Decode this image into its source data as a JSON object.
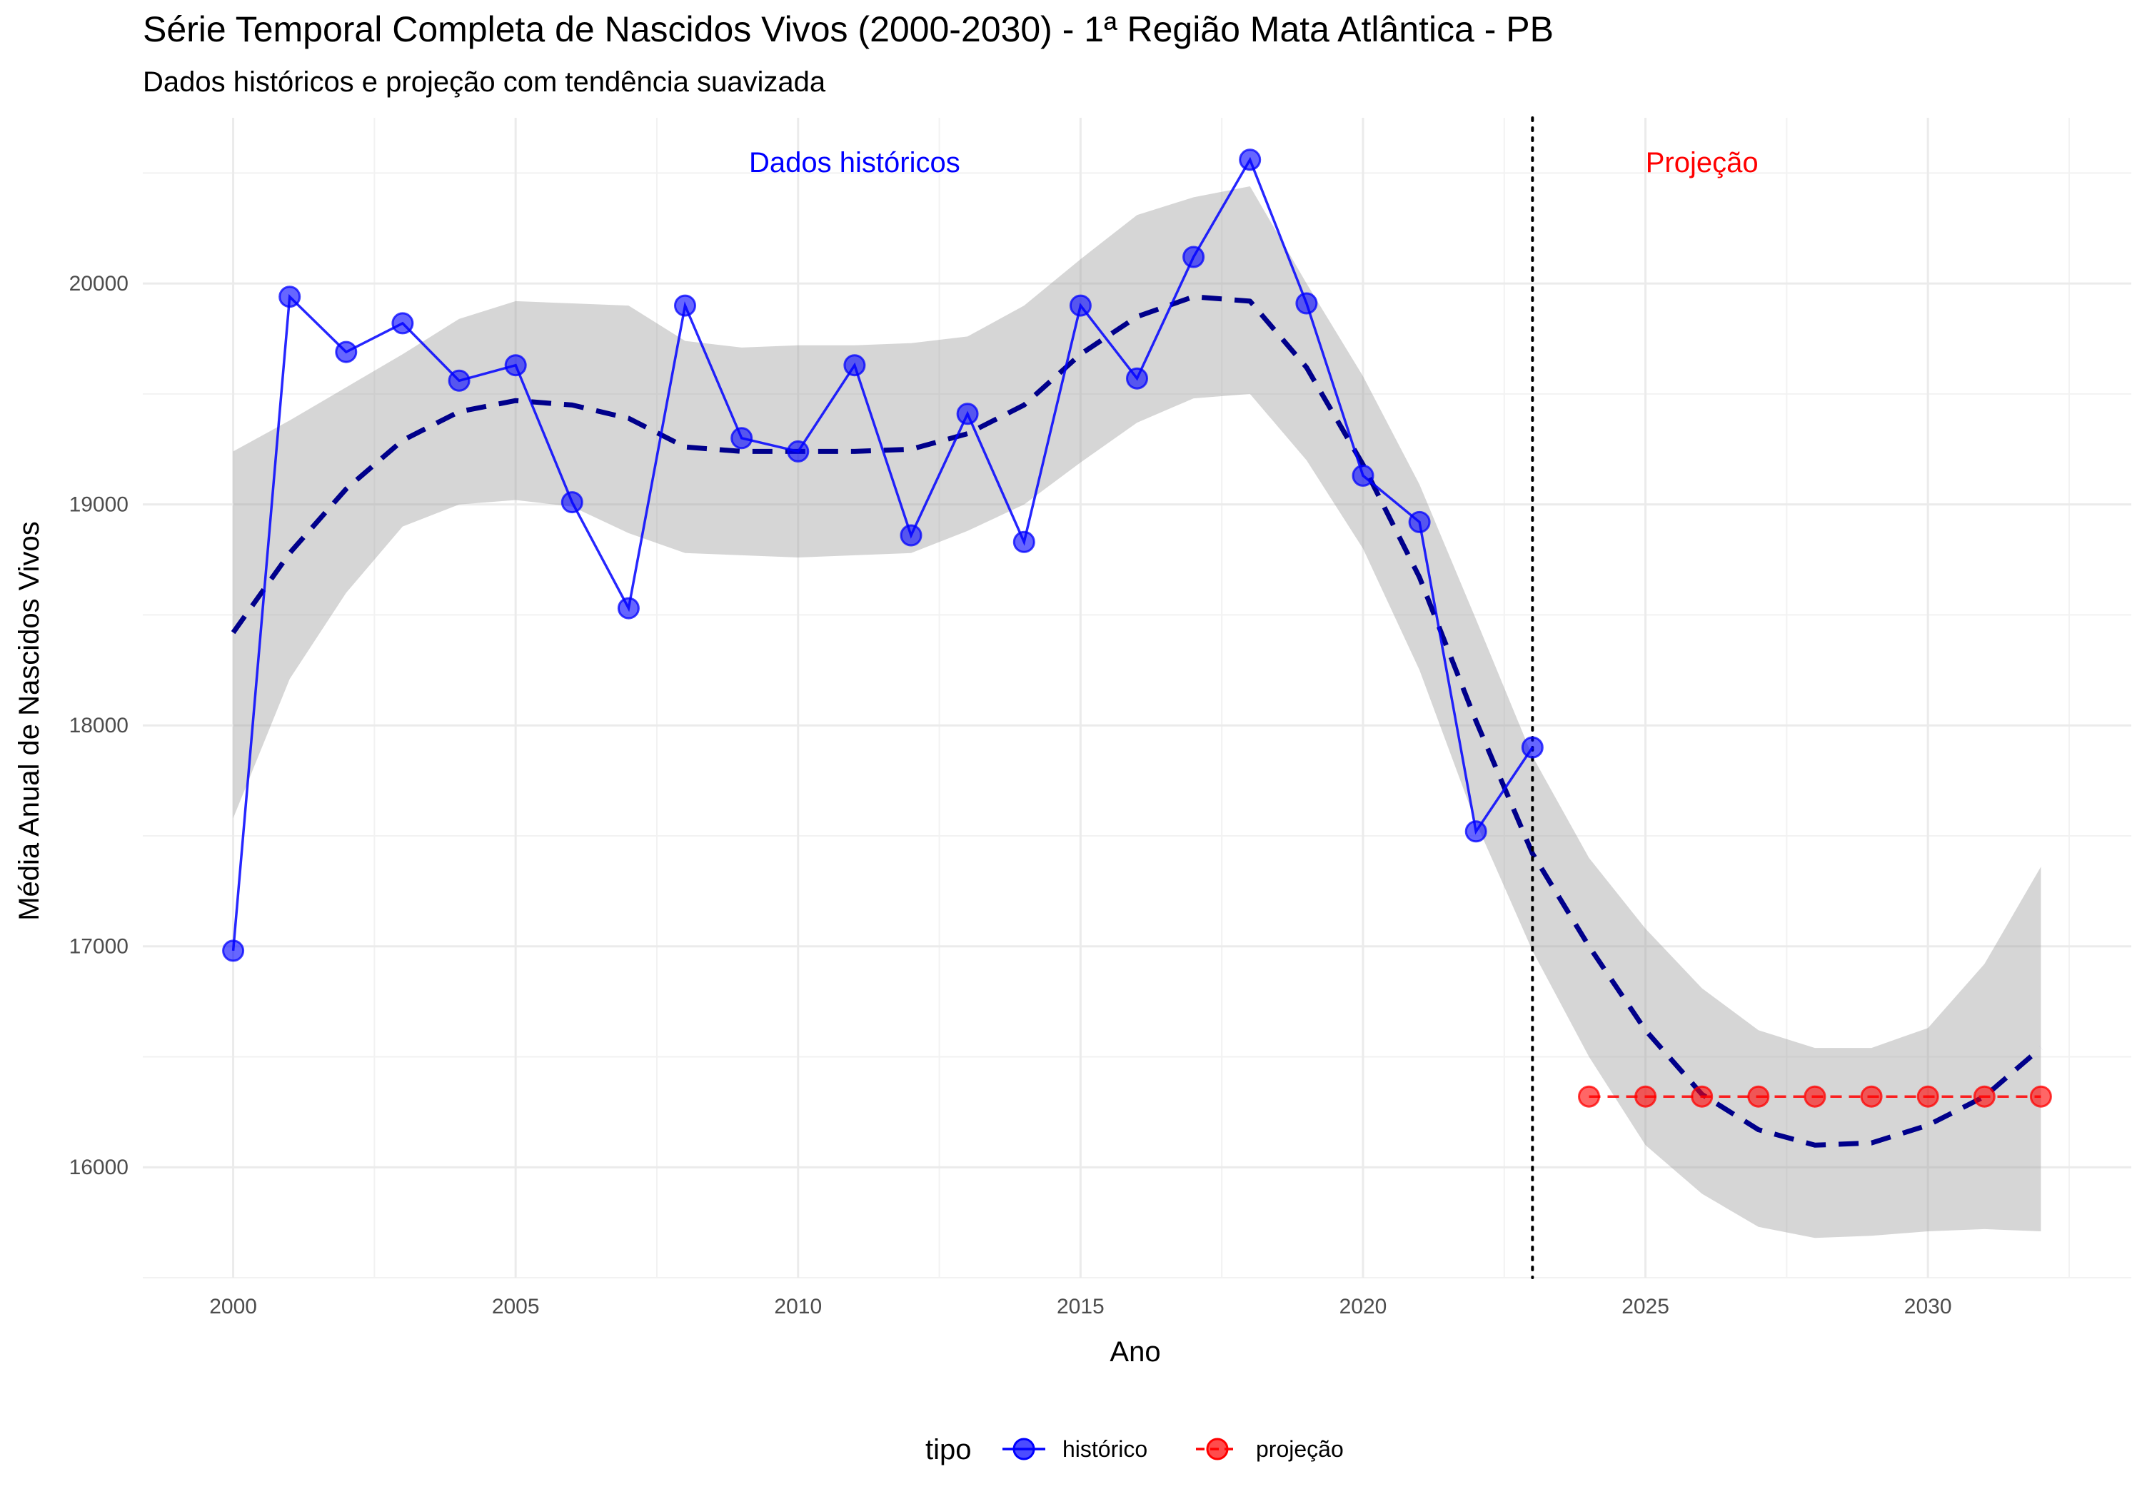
{
  "chart_data": {
    "type": "line",
    "title": "Série Temporal Completa de Nascidos Vivos (2000-2030) -  1ª Região Mata Atlântica - PB",
    "subtitle": "Dados históricos e projeção com tendência suavizada",
    "xlabel": "Ano",
    "ylabel": "Média Anual de Nascidos Vivos",
    "xlim": [
      1998.4,
      2033.6
    ],
    "ylim": [
      15500,
      20750
    ],
    "x_ticks": [
      2000,
      2005,
      2010,
      2015,
      2020,
      2025,
      2030
    ],
    "y_ticks": [
      16000,
      17000,
      18000,
      19000,
      20000
    ],
    "grid": true,
    "vline": {
      "x": 2023,
      "style": "dotted"
    },
    "annotations": [
      {
        "text": "Dados históricos",
        "x": 2011,
        "y": 20550,
        "color": "#0000ff"
      },
      {
        "text": "Projeção",
        "x": 2026,
        "y": 20550,
        "color": "#ff0000"
      }
    ],
    "legend": {
      "title": "tipo",
      "position": "bottom",
      "entries": [
        {
          "label": "histórico",
          "color": "#0000ff"
        },
        {
          "label": "projeção",
          "color": "#ff0000"
        }
      ]
    },
    "series": [
      {
        "name": "histórico",
        "color": "#0000ff",
        "x": [
          2000,
          2001,
          2002,
          2003,
          2004,
          2005,
          2006,
          2007,
          2008,
          2009,
          2010,
          2011,
          2012,
          2013,
          2014,
          2015,
          2016,
          2017,
          2018,
          2019,
          2020,
          2021,
          2022,
          2023
        ],
        "y": [
          16980,
          19940,
          19690,
          19820,
          19560,
          19630,
          19010,
          18530,
          19900,
          19300,
          19240,
          19630,
          18860,
          19410,
          18830,
          19900,
          19570,
          20120,
          20560,
          19910,
          19130,
          18920,
          17520,
          17900
        ]
      },
      {
        "name": "projeção",
        "color": "#ff0000",
        "x": [
          2024,
          2025,
          2026,
          2027,
          2028,
          2029,
          2030,
          2031,
          2032
        ],
        "y": [
          16320,
          16320,
          16320,
          16320,
          16320,
          16320,
          16320,
          16320,
          16320
        ]
      }
    ],
    "trend": {
      "color": "#00008b",
      "style": "dashed",
      "x": [
        2000,
        2001,
        2002,
        2003,
        2004,
        2005,
        2006,
        2007,
        2008,
        2009,
        2010,
        2011,
        2012,
        2013,
        2014,
        2015,
        2016,
        2017,
        2018,
        2019,
        2020,
        2021,
        2022,
        2023,
        2024,
        2025,
        2026,
        2027,
        2028,
        2029,
        2030,
        2031,
        2032
      ],
      "y": [
        18420,
        18780,
        19070,
        19290,
        19420,
        19470,
        19450,
        19390,
        19260,
        19240,
        19240,
        19240,
        19250,
        19320,
        19450,
        19680,
        19850,
        19940,
        19920,
        19620,
        19180,
        18670,
        18020,
        17420,
        17000,
        16620,
        16330,
        16170,
        16100,
        16110,
        16190,
        16320,
        16540
      ],
      "ci_lower": [
        17580,
        18210,
        18600,
        18900,
        19000,
        19020,
        18990,
        18870,
        18780,
        18770,
        18760,
        18770,
        18780,
        18880,
        19000,
        19190,
        19370,
        19480,
        19500,
        19200,
        18800,
        18250,
        17560,
        16980,
        16500,
        16100,
        15880,
        15730,
        15680,
        15690,
        15710,
        15720,
        15710
      ],
      "ci_upper": [
        19240,
        19380,
        19530,
        19680,
        19840,
        19920,
        19910,
        19900,
        19740,
        19710,
        19720,
        19720,
        19730,
        19760,
        19900,
        20110,
        20310,
        20390,
        20440,
        20000,
        19580,
        19090,
        18480,
        17860,
        17400,
        17080,
        16810,
        16620,
        16540,
        16540,
        16630,
        16920,
        17360
      ]
    }
  }
}
